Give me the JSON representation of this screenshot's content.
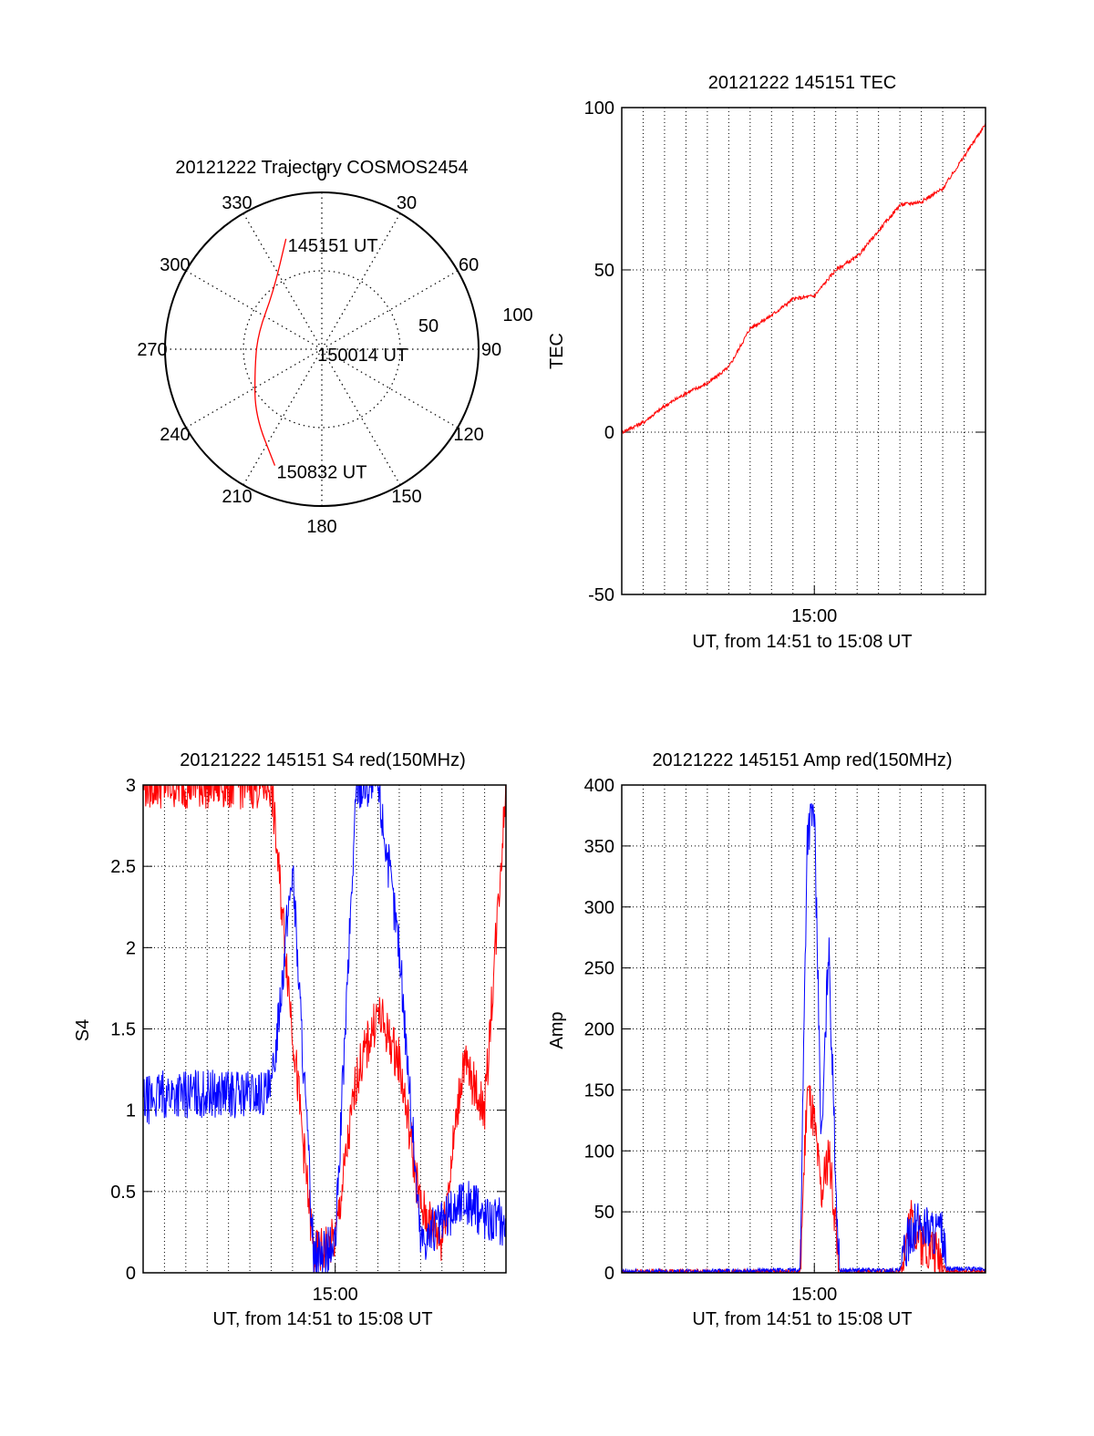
{
  "chart_data": [
    {
      "type": "polar",
      "title": "20121222 Trajectory COSMOS2454",
      "azimuth_labels": [
        "0",
        "30",
        "60",
        "90",
        "120",
        "150",
        "180",
        "210",
        "240",
        "270",
        "300",
        "330"
      ],
      "radial_labels": [
        "50",
        "100"
      ],
      "radial_max": 100,
      "grid": true,
      "trajectory": {
        "color": "#ff0000",
        "points": [
          {
            "az": 342,
            "r": 74
          },
          {
            "az": 320,
            "r": 48
          },
          {
            "az": 283,
            "r": 42
          },
          {
            "az": 252,
            "r": 45
          },
          {
            "az": 225,
            "r": 60
          },
          {
            "az": 202,
            "r": 80
          }
        ]
      },
      "annotations": [
        {
          "text": "145151 UT",
          "az": 342,
          "r": 74
        },
        {
          "text": "150014 UT",
          "az": 278,
          "r": 4
        },
        {
          "text": "150832 UT",
          "az": 202,
          "r": 80
        }
      ]
    },
    {
      "type": "line",
      "title": "20121222 145151 TEC",
      "xlabel": "UT, from 14:51 to 15:08 UT",
      "ylabel": "TEC",
      "xlim": [
        "14:51",
        "15:08"
      ],
      "ylim": [
        -50,
        100
      ],
      "yticks": [
        "-50",
        "0",
        "50",
        "100"
      ],
      "xticks": [
        "15:00"
      ],
      "grid": true,
      "series": [
        {
          "color": "#ff0000",
          "x": [
            "14:51",
            "14:52",
            "14:53",
            "14:54",
            "14:55",
            "14:56",
            "14:57",
            "14:58",
            "14:59",
            "15:00",
            "15:01",
            "15:02",
            "15:03",
            "15:04",
            "15:05",
            "15:06",
            "15:07",
            "15:08"
          ],
          "values": [
            0,
            3,
            8,
            12,
            15,
            20,
            32,
            36,
            41,
            42,
            50,
            54,
            62,
            70,
            71,
            75,
            85,
            95
          ]
        }
      ]
    },
    {
      "type": "line",
      "title": "20121222 145151 S4 red(150MHz)",
      "xlabel": "UT, from 14:51 to 15:08 UT",
      "ylabel": "S4",
      "xlim": [
        "14:51",
        "15:08"
      ],
      "ylim": [
        0,
        3
      ],
      "yticks": [
        "0",
        "0.5",
        "1",
        "1.5",
        "2",
        "2.5",
        "3"
      ],
      "xticks": [
        "15:00"
      ],
      "grid": true,
      "series": [
        {
          "color": "#ff0000",
          "x": [
            "14:51",
            "14:52",
            "14:53",
            "14:54",
            "14:55",
            "14:56",
            "14:57",
            "14:58",
            "14:59",
            "15:00",
            "15:01",
            "15:02",
            "15:03",
            "15:04",
            "15:05",
            "15:06",
            "15:07",
            "15:08"
          ],
          "values": [
            3,
            3,
            3,
            3,
            3,
            3,
            3,
            1.5,
            0.1,
            0.2,
            1.2,
            1.6,
            1.3,
            0.4,
            0.2,
            1.3,
            1.0,
            3
          ]
        },
        {
          "color": "#0000ff",
          "x": [
            "14:51",
            "14:52",
            "14:53",
            "14:54",
            "14:55",
            "14:56",
            "14:57",
            "14:58",
            "14:59",
            "15:00",
            "15:01",
            "15:02",
            "15:03",
            "15:04",
            "15:05",
            "15:06",
            "15:07",
            "15:08"
          ],
          "values": [
            1.05,
            1.1,
            1.1,
            1.1,
            1.1,
            1.1,
            1.1,
            2.5,
            0.1,
            0.15,
            3,
            3,
            2.0,
            0.2,
            0.3,
            0.45,
            0.35,
            0.3
          ]
        }
      ]
    },
    {
      "type": "line",
      "title": "20121222 145151 Amp red(150MHz)",
      "xlabel": "UT, from 14:51 to 15:08 UT",
      "ylabel": "Amp",
      "xlim": [
        "14:51",
        "15:08"
      ],
      "ylim": [
        0,
        400
      ],
      "yticks": [
        "0",
        "50",
        "100",
        "150",
        "200",
        "250",
        "300",
        "350",
        "400"
      ],
      "xticks": [
        "15:00"
      ],
      "grid": true,
      "series": [
        {
          "color": "#ff0000",
          "x": [
            "14:51",
            "14:55",
            "14:59:20",
            "14:59:40",
            "15:00",
            "15:00:20",
            "15:00:40",
            "15:01",
            "15:01:10",
            "15:04",
            "15:04:30",
            "15:05",
            "15:05:30",
            "15:06",
            "15:06:10",
            "15:08"
          ],
          "values": [
            1,
            1,
            1,
            150,
            120,
            60,
            100,
            40,
            1,
            1,
            45,
            25,
            20,
            10,
            1,
            1
          ]
        },
        {
          "color": "#0000ff",
          "x": [
            "14:51",
            "14:55",
            "14:59:20",
            "14:59:40",
            "15:00",
            "15:00:20",
            "15:00:40",
            "15:01",
            "15:01:10",
            "15:04",
            "15:04:30",
            "15:05",
            "15:05:30",
            "15:06",
            "15:06:10",
            "15:08"
          ],
          "values": [
            1,
            1,
            2,
            360,
            380,
            100,
            270,
            80,
            2,
            2,
            35,
            40,
            35,
            30,
            3,
            3
          ]
        }
      ]
    }
  ]
}
